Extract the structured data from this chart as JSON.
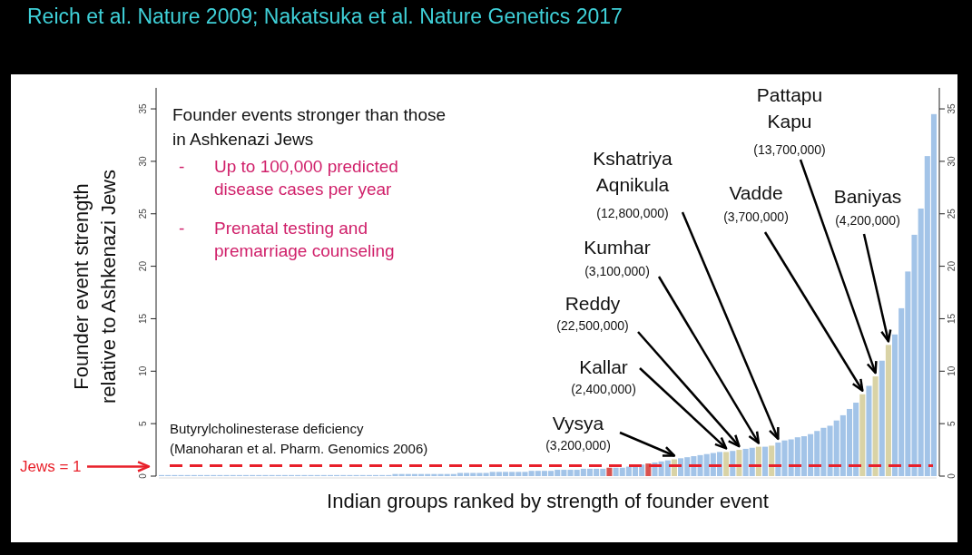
{
  "chart_data": {
    "type": "bar",
    "title": "Reich et al. Nature 2009; Nakatsuka et al. Nature Genetics 2017",
    "xlabel": "Indian groups ranked by strength of founder event",
    "ylabel": "Founder event strength\nrelative to Ashkenazi Jews",
    "categories": [
      null,
      null,
      null,
      null,
      null,
      null,
      null,
      null,
      null,
      null,
      null,
      null,
      null,
      null,
      null,
      null,
      null,
      null,
      null,
      null,
      null,
      null,
      null,
      null,
      null,
      null,
      null,
      null,
      null,
      null,
      null,
      null,
      null,
      null,
      null,
      null,
      null,
      null,
      null,
      null,
      null,
      null,
      null,
      null,
      null,
      null,
      null,
      null,
      null,
      null,
      null,
      null,
      null,
      null,
      null,
      null,
      null,
      null,
      null,
      null,
      null,
      null,
      null,
      null,
      null,
      null,
      null,
      null,
      null,
      null,
      null,
      null,
      null,
      null,
      null,
      null,
      null,
      null,
      null,
      null,
      null,
      null,
      null,
      null,
      null,
      null,
      null,
      null,
      null,
      null,
      null,
      null,
      null,
      null,
      null,
      null,
      null,
      null,
      null,
      null,
      null,
      null,
      null,
      null,
      null,
      null,
      null,
      null,
      null,
      null,
      null,
      null,
      null,
      null,
      null,
      null,
      null,
      null,
      null,
      null
    ],
    "values": [
      0.1,
      0.1,
      0.1,
      0.1,
      0.1,
      0.1,
      0.1,
      0.1,
      0.1,
      0.1,
      0.1,
      0.1,
      0.1,
      0.1,
      0.1,
      0.1,
      0.1,
      0.1,
      0.1,
      0.1,
      0.1,
      0.1,
      0.1,
      0.1,
      0.1,
      0.1,
      0.1,
      0.1,
      0.1,
      0.1,
      0.1,
      0.1,
      0.1,
      0.1,
      0.1,
      0.1,
      0.2,
      0.2,
      0.2,
      0.2,
      0.2,
      0.2,
      0.2,
      0.2,
      0.2,
      0.2,
      0.3,
      0.3,
      0.3,
      0.3,
      0.3,
      0.4,
      0.4,
      0.4,
      0.4,
      0.4,
      0.4,
      0.5,
      0.5,
      0.5,
      0.5,
      0.6,
      0.6,
      0.6,
      0.6,
      0.7,
      0.7,
      0.7,
      0.7,
      0.8,
      0.8,
      0.8,
      0.9,
      0.9,
      1.1,
      1.2,
      1.3,
      1.4,
      1.5,
      1.6,
      1.7,
      1.8,
      1.9,
      2.0,
      2.1,
      2.2,
      2.3,
      2.3,
      2.4,
      2.5,
      2.6,
      2.7,
      2.8,
      2.8,
      2.9,
      3.2,
      3.4,
      3.5,
      3.7,
      3.8,
      4.0,
      4.3,
      4.6,
      4.8,
      5.3,
      5.8,
      6.4,
      7.0,
      7.8,
      8.6,
      9.5,
      11,
      12.5,
      13.5,
      16,
      19.5,
      23,
      25.5,
      30.5,
      34.5
    ],
    "colors": [
      "#a3c4e8",
      "#a3c4e8",
      "#a3c4e8",
      "#a3c4e8",
      "#a3c4e8",
      "#a3c4e8",
      "#a3c4e8",
      "#a3c4e8",
      "#a3c4e8",
      "#a3c4e8",
      "#a3c4e8",
      "#a3c4e8",
      "#a3c4e8",
      "#a3c4e8",
      "#a3c4e8",
      "#a3c4e8",
      "#a3c4e8",
      "#a3c4e8",
      "#a3c4e8",
      "#a3c4e8",
      "#a3c4e8",
      "#a3c4e8",
      "#a3c4e8",
      "#a3c4e8",
      "#a3c4e8",
      "#a3c4e8",
      "#a3c4e8",
      "#a3c4e8",
      "#a3c4e8",
      "#a3c4e8",
      "#a3c4e8",
      "#a3c4e8",
      "#a3c4e8",
      "#a3c4e8",
      "#a3c4e8",
      "#a3c4e8",
      "#a3c4e8",
      "#a3c4e8",
      "#a3c4e8",
      "#a3c4e8",
      "#a3c4e8",
      "#a3c4e8",
      "#a3c4e8",
      "#a3c4e8",
      "#a3c4e8",
      "#a3c4e8",
      "#a3c4e8",
      "#a3c4e8",
      "#a3c4e8",
      "#a3c4e8",
      "#a3c4e8",
      "#a3c4e8",
      "#a3c4e8",
      "#a3c4e8",
      "#a3c4e8",
      "#a3c4e8",
      "#a3c4e8",
      "#a3c4e8",
      "#a3c4e8",
      "#a3c4e8",
      "#a3c4e8",
      "#a3c4e8",
      "#a3c4e8",
      "#a3c4e8",
      "#a3c4e8",
      "#a3c4e8",
      "#a3c4e8",
      "#a3c4e8",
      "#a3c4e8",
      "#d9534f",
      "#a3c4e8",
      "#a3c4e8",
      "#a3c4e8",
      "#a3c4e8",
      "#a3c4e8",
      "#d9534f",
      "#a3c4e8",
      "#a3c4e8",
      "#a3c4e8",
      "#d9d3a6",
      "#a3c4e8",
      "#a3c4e8",
      "#a3c4e8",
      "#a3c4e8",
      "#a3c4e8",
      "#a3c4e8",
      "#a3c4e8",
      "#d9d3a6",
      "#a3c4e8",
      "#d9d3a6",
      "#a3c4e8",
      "#a3c4e8",
      "#d9d3a6",
      "#a3c4e8",
      "#d9d3a6",
      "#a3c4e8",
      "#a3c4e8",
      "#a3c4e8",
      "#a3c4e8",
      "#a3c4e8",
      "#a3c4e8",
      "#a3c4e8",
      "#a3c4e8",
      "#a3c4e8",
      "#a3c4e8",
      "#a3c4e8",
      "#a3c4e8",
      "#a3c4e8",
      "#d9d3a6",
      "#a3c4e8",
      "#d9d3a6",
      "#a3c4e8",
      "#d9d3a6",
      "#a3c4e8",
      "#a3c4e8",
      "#a3c4e8",
      "#a3c4e8",
      "#a3c4e8",
      "#a3c4e8",
      "#a3c4e8"
    ],
    "ylim": [
      0,
      37
    ],
    "yticks": [
      0,
      5,
      10,
      15,
      20,
      25,
      30,
      35
    ],
    "y2lim": [
      0,
      37
    ],
    "y2ticks": [
      0,
      5,
      10,
      15,
      20,
      25,
      30,
      35
    ],
    "tick_labels": "y",
    "ref_lines": [
      {
        "axis": "y",
        "value": 1,
        "label": "Jews = 1",
        "color": "#e8202a",
        "line_style": "dashed"
      }
    ],
    "annotations": [
      "Founder events stronger than those\nin Ashkenazi Jews",
      "- Up to 100,000 predicted\ndisease cases per year",
      "- Prenatal testing and\npremarriage counseling",
      "Butyrylcholinesterase deficiency\n(Manoharan et al. Pharm. Genomics 2006)",
      "Pattapu\nKapu\n(13,700,000)",
      "Kshatriya\nAqnikula\n(12,800,000)",
      "Vadde\n(3,700,000)",
      "Baniyas\n(4,200,000)",
      "Kumhar\n(3,100,000)",
      "Reddy\n(22,500,000)",
      "Kallar\n(2,400,000)",
      "Vysya\n(3,200,000)"
    ]
  }
}
